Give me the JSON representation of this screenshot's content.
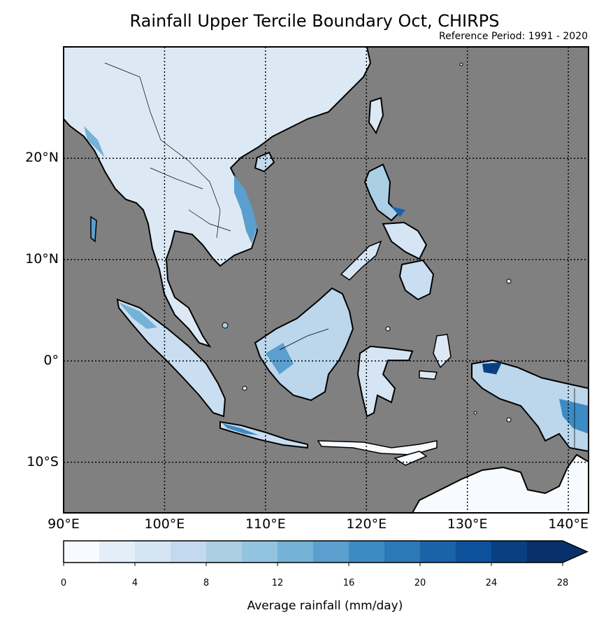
{
  "title": "Rainfall Upper Tercile Boundary Oct, CHIRPS",
  "subtitle": "Reference Period: 1991 - 2020",
  "map": {
    "lon_range": [
      90,
      142
    ],
    "lat_range": [
      -15,
      31
    ],
    "background_color": "#808080",
    "lat_labels": [
      {
        "value": 20,
        "text": "20°N"
      },
      {
        "value": 10,
        "text": "10°N"
      },
      {
        "value": 0,
        "text": "0°"
      },
      {
        "value": -10,
        "text": "10°S"
      }
    ],
    "lon_labels": [
      {
        "value": 90,
        "text": "90°E"
      },
      {
        "value": 100,
        "text": "100°E"
      },
      {
        "value": 110,
        "text": "110°E"
      },
      {
        "value": 120,
        "text": "120°E"
      },
      {
        "value": 130,
        "text": "130°E"
      },
      {
        "value": 140,
        "text": "140°E"
      }
    ]
  },
  "colorbar": {
    "label": "Average rainfall (mm/day)",
    "ticks": [
      "0",
      "4",
      "8",
      "12",
      "16",
      "20",
      "24",
      "28"
    ],
    "range": [
      0,
      28
    ],
    "step": 2,
    "extend": "max",
    "colors": [
      "#f7fbff",
      "#e3eef9",
      "#d5e5f4",
      "#c2d9ee",
      "#abcfe5",
      "#93c4df",
      "#74b2d8",
      "#5a9fce",
      "#3d8bc3",
      "#2c79b8",
      "#1a63a8",
      "#0d519b",
      "#084082",
      "#08306b"
    ]
  }
}
